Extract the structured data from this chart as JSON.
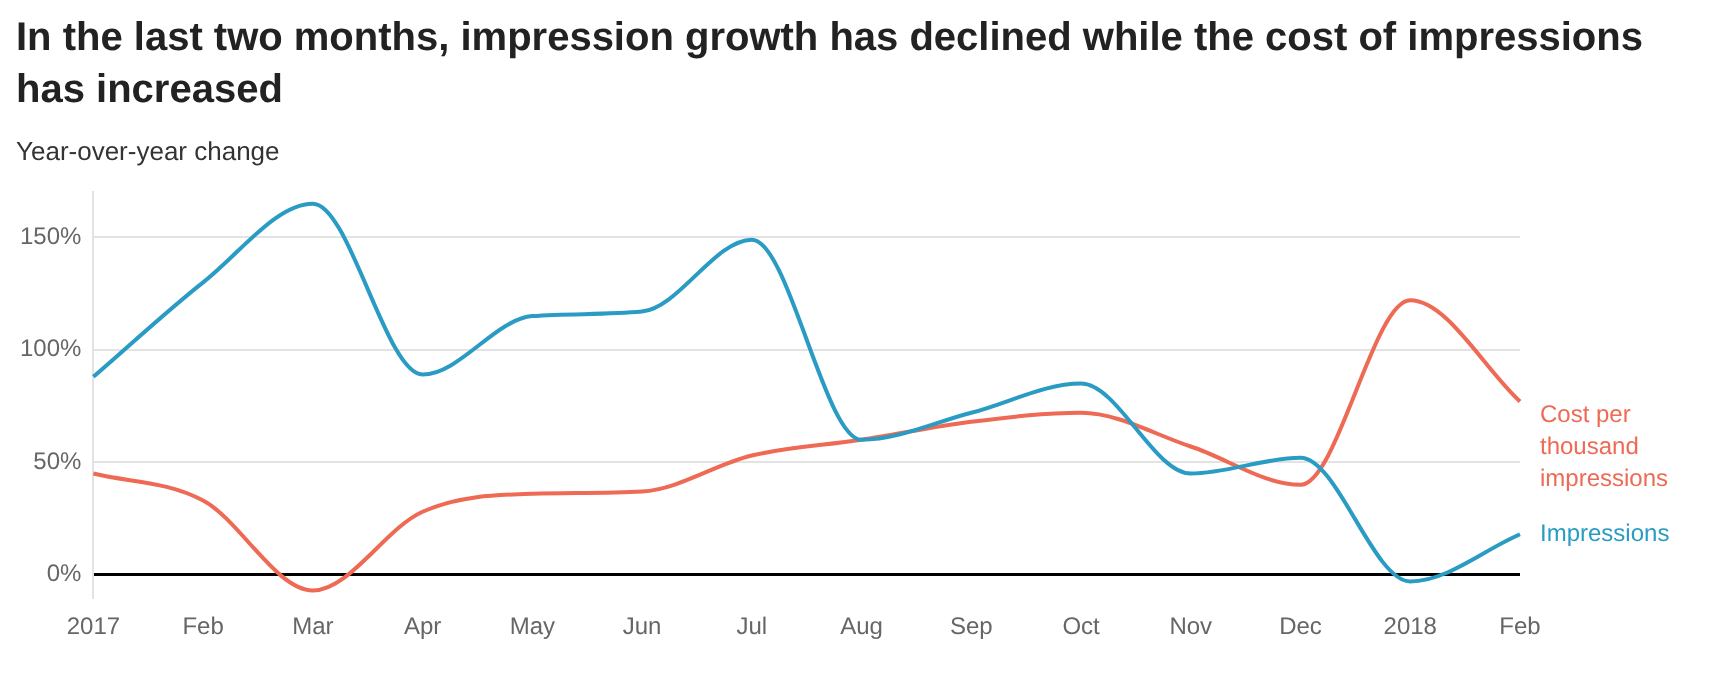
{
  "chart_data": {
    "type": "line",
    "title": "In the last two months, impression growth has declined while the cost of impressions has increased",
    "subtitle": "Year-over-year change",
    "categories": [
      "2017",
      "Feb",
      "Mar",
      "Apr",
      "May",
      "Jun",
      "Jul",
      "Aug",
      "Sep",
      "Oct",
      "Nov",
      "Dec",
      "2018",
      "Feb"
    ],
    "series": [
      {
        "name": "Impressions",
        "color": "#2a9bc3",
        "values": [
          88,
          130,
          165,
          89,
          115,
          117,
          149,
          60,
          72,
          85,
          45,
          52,
          -3,
          18
        ]
      },
      {
        "name": "Cost per thousand impressions",
        "color": "#ee6a55",
        "values": [
          45,
          33,
          -7,
          28,
          36,
          37,
          53,
          60,
          68,
          72,
          57,
          40,
          122,
          77
        ]
      }
    ],
    "ylim": [
      -10,
      170
    ],
    "yticks": [
      {
        "value": 0,
        "label": "0%"
      },
      {
        "value": 50,
        "label": "50%"
      },
      {
        "value": 100,
        "label": "100%"
      },
      {
        "value": 150,
        "label": "150%"
      }
    ],
    "grid": "y",
    "legend": false,
    "marker": "none",
    "line_style": "solid"
  }
}
